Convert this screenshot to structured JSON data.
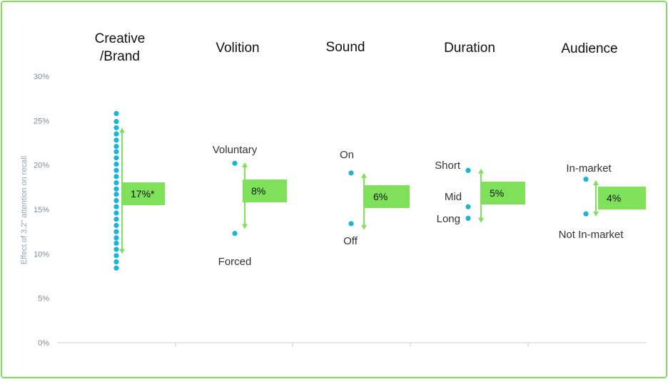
{
  "chart_data": {
    "type": "scatter",
    "ylabel": "Effect of 3.2\" attention on recall",
    "ylim": [
      0,
      30
    ],
    "yticks": [
      0,
      5,
      10,
      15,
      20,
      25,
      30
    ],
    "ytick_suffix": "%",
    "grid": false,
    "accent_color": "#7fe05a",
    "point_color": "#1bb3d6",
    "groups": [
      {
        "name": "Creative\n/Brand",
        "points": [
          {
            "label": "",
            "y": 8.4
          },
          {
            "label": "",
            "y": 9.1
          },
          {
            "label": "",
            "y": 9.8
          },
          {
            "label": "",
            "y": 10.5
          },
          {
            "label": "",
            "y": 11.2
          },
          {
            "label": "",
            "y": 11.8
          },
          {
            "label": "",
            "y": 12.5
          },
          {
            "label": "",
            "y": 13.2
          },
          {
            "label": "",
            "y": 13.9
          },
          {
            "label": "",
            "y": 14.6
          },
          {
            "label": "",
            "y": 15.3
          },
          {
            "label": "",
            "y": 16.0
          },
          {
            "label": "",
            "y": 16.7
          },
          {
            "label": "",
            "y": 17.3
          },
          {
            "label": "",
            "y": 18.0
          },
          {
            "label": "",
            "y": 18.7
          },
          {
            "label": "",
            "y": 19.4
          },
          {
            "label": "",
            "y": 20.1
          },
          {
            "label": "",
            "y": 20.8
          },
          {
            "label": "",
            "y": 21.5
          },
          {
            "label": "",
            "y": 22.1
          },
          {
            "label": "",
            "y": 22.8
          },
          {
            "label": "",
            "y": 23.5
          },
          {
            "label": "",
            "y": 24.2
          },
          {
            "label": "",
            "y": 24.9
          },
          {
            "label": "",
            "y": 25.8
          }
        ],
        "range": [
          10.0,
          24.2
        ],
        "effect_label": "17%*"
      },
      {
        "name": "Volition",
        "points": [
          {
            "label": "Voluntary",
            "y": 20.2
          },
          {
            "label": "Forced",
            "y": 12.3
          }
        ],
        "range": [
          12.8,
          20.3
        ],
        "effect_label": "8%"
      },
      {
        "name": "Sound",
        "points": [
          {
            "label": "On",
            "y": 19.1
          },
          {
            "label": "Off",
            "y": 13.4
          }
        ],
        "range": [
          12.7,
          19.1
        ],
        "effect_label": "6%"
      },
      {
        "name": "Duration",
        "points": [
          {
            "label": "Short",
            "y": 19.4
          },
          {
            "label": "Mid",
            "y": 15.3
          },
          {
            "label": "Long",
            "y": 14.0
          }
        ],
        "range": [
          13.5,
          19.6
        ],
        "effect_label": "5%"
      },
      {
        "name": "Audience",
        "points": [
          {
            "label": "In-market",
            "y": 18.4
          },
          {
            "label": "Not In-market",
            "y": 14.5
          }
        ],
        "range": [
          14.2,
          18.3
        ],
        "effect_label": "4%"
      }
    ]
  }
}
